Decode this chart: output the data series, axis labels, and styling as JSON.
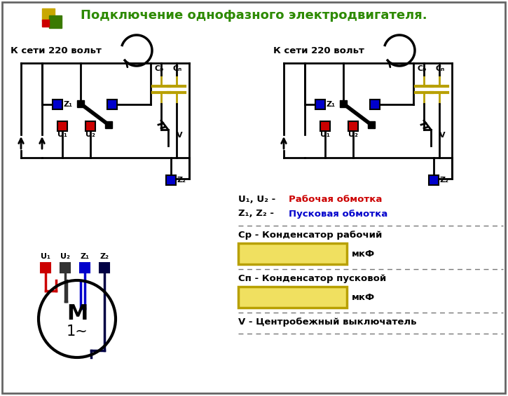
{
  "title": "Подключение однофазного электродвигателя.",
  "title_color": "#2d8a00",
  "title_fontsize": 13,
  "bg_color": "#ffffff",
  "border_color": "#555555",
  "text_rabochaya": "Рабочая обмотка",
  "text_puskovaya": "Пусковая обмотка",
  "text_cp": "Ср - Конденсатор рабочий",
  "text_mkf": "мкФ",
  "text_cn": "Сп - Конденсатор пусковой",
  "text_v": "V - Центробежный выключатель",
  "text_kseti": "К сети 220 вольт",
  "text_m": "M",
  "text_1phase": "1~",
  "color_red": "#cc0000",
  "color_blue": "#0000cc",
  "color_black": "#000000",
  "color_yellow_olive": "#b8a000",
  "color_cap_fill": "#f0e060",
  "color_cap_border": "#b8a000",
  "logo_yellow": "#c8a800",
  "logo_red": "#cc0000",
  "logo_green": "#3a7a00"
}
